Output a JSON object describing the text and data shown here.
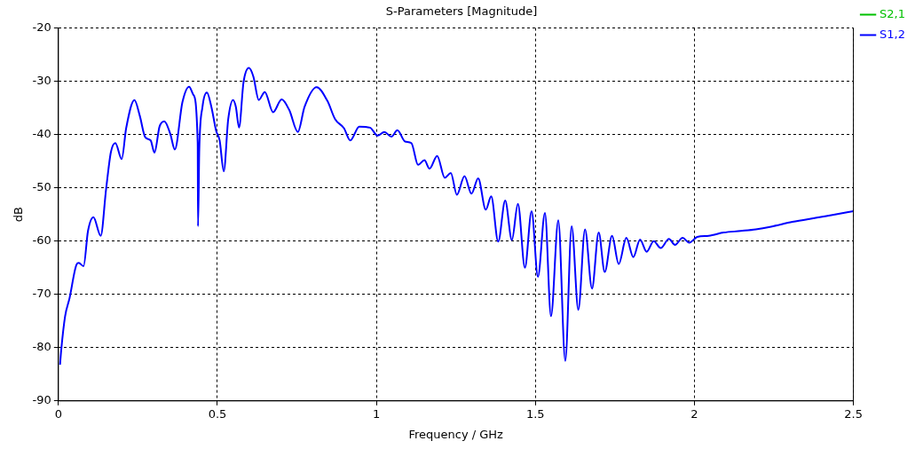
{
  "chart_data": {
    "type": "line",
    "title": "S-Parameters [Magnitude]",
    "xlabel": "Frequency / GHz",
    "ylabel": "dB",
    "xlim": [
      0,
      2.5
    ],
    "xticks": [
      0,
      0.5,
      1,
      1.5,
      2,
      2.5
    ],
    "ylim": [
      -90,
      -20
    ],
    "yticks": [
      -90,
      -80,
      -70,
      -60,
      -50,
      -40,
      -30,
      -20
    ],
    "grid": true,
    "legend": "top right",
    "marker": "none",
    "series": [
      {
        "name": "S2,1",
        "color": "#00c000"
      },
      {
        "name": "S1,2",
        "color": "#0000ff",
        "x": [
          0.005,
          0.009,
          0.021,
          0.035,
          0.057,
          0.064,
          0.079,
          0.093,
          0.11,
          0.133,
          0.15,
          0.165,
          0.179,
          0.199,
          0.213,
          0.239,
          0.256,
          0.273,
          0.29,
          0.302,
          0.318,
          0.333,
          0.352,
          0.366,
          0.39,
          0.411,
          0.424,
          0.438,
          0.439,
          0.443,
          0.453,
          0.467,
          0.481,
          0.496,
          0.507,
          0.52,
          0.534,
          0.549,
          0.558,
          0.568,
          0.582,
          0.599,
          0.613,
          0.63,
          0.649,
          0.675,
          0.702,
          0.726,
          0.753,
          0.774,
          0.812,
          0.846,
          0.87,
          0.898,
          0.918,
          0.946,
          0.98,
          1.004,
          1.025,
          1.047,
          1.066,
          1.09,
          1.11,
          1.131,
          1.151,
          1.167,
          1.191,
          1.215,
          1.234,
          1.253,
          1.277,
          1.299,
          1.32,
          1.344,
          1.361,
          1.383,
          1.405,
          1.426,
          1.445,
          1.467,
          1.488,
          1.508,
          1.53,
          1.549,
          1.572,
          1.594,
          1.614,
          1.635,
          1.656,
          1.678,
          1.699,
          1.718,
          1.741,
          1.762,
          1.786,
          1.808,
          1.829,
          1.85,
          1.872,
          1.894,
          1.92,
          1.939,
          1.963,
          1.984,
          2.009,
          2.045,
          2.092,
          2.145,
          2.193,
          2.241,
          2.308,
          2.385,
          2.442,
          2.5
        ],
        "values": [
          -83.2,
          -80.3,
          -74.1,
          -70.7,
          -64.4,
          -64.1,
          -64.7,
          -58.1,
          -55.5,
          -59.0,
          -50.2,
          -43.3,
          -41.6,
          -44.6,
          -38.8,
          -33.5,
          -36.5,
          -40.5,
          -41.1,
          -43.4,
          -38.5,
          -37.5,
          -39.9,
          -42.8,
          -33.9,
          -31.0,
          -32.5,
          -41.6,
          -57.2,
          -42.8,
          -34.8,
          -32.1,
          -34.8,
          -39.3,
          -41.1,
          -46.9,
          -37.1,
          -33.5,
          -34.8,
          -38.7,
          -30.2,
          -27.5,
          -29.1,
          -33.5,
          -32.0,
          -35.8,
          -33.4,
          -35.4,
          -39.5,
          -34.8,
          -31.1,
          -33.7,
          -37.1,
          -38.8,
          -41.1,
          -38.5,
          -38.7,
          -40.2,
          -39.5,
          -40.4,
          -39.2,
          -41.3,
          -41.6,
          -45.7,
          -44.8,
          -46.4,
          -44.0,
          -48.1,
          -47.2,
          -51.3,
          -47.8,
          -51.1,
          -48.2,
          -54.1,
          -51.6,
          -60.1,
          -52.4,
          -59.8,
          -53.0,
          -65.0,
          -54.4,
          -66.7,
          -54.7,
          -74.1,
          -56.1,
          -82.5,
          -57.2,
          -72.9,
          -57.8,
          -68.9,
          -58.4,
          -65.8,
          -59.0,
          -64.3,
          -59.4,
          -63.0,
          -59.7,
          -62.0,
          -60.0,
          -61.3,
          -59.6,
          -60.7,
          -59.4,
          -60.3,
          -59.2,
          -59.0,
          -58.4,
          -58.1,
          -57.8,
          -57.3,
          -56.4,
          -55.6,
          -55.0,
          -54.4
        ]
      }
    ]
  }
}
